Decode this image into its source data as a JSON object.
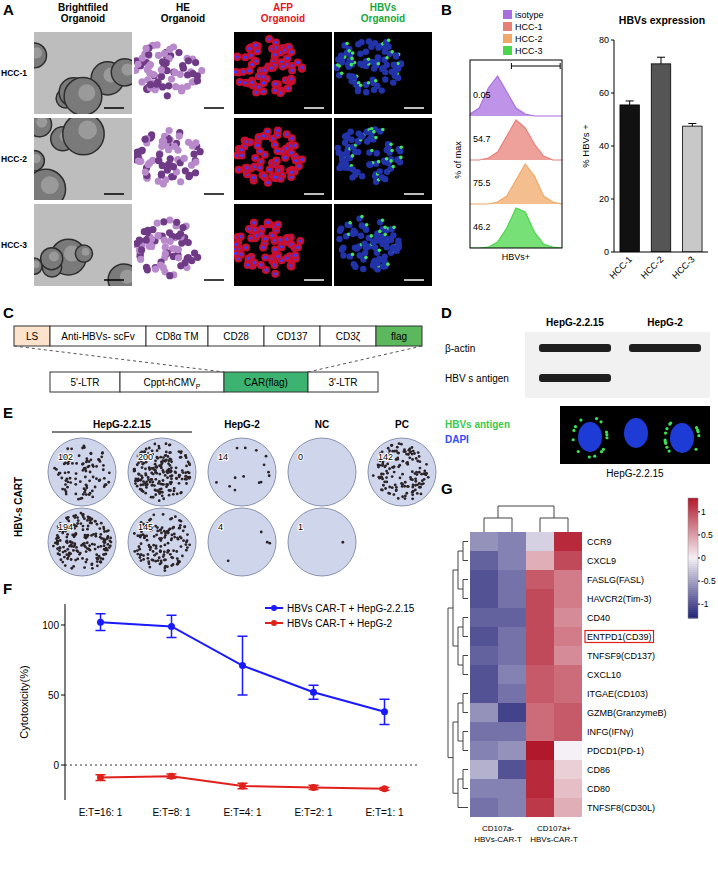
{
  "panels": {
    "A": {
      "label": "A",
      "columns": [
        {
          "label": [
            "Brightfiled",
            "Organoid"
          ],
          "color": "#000000"
        },
        {
          "label": [
            "HE",
            "Organoid"
          ],
          "color": "#000000"
        },
        {
          "label": [
            "AFP",
            "Organoid"
          ],
          "color": "#e8141b"
        },
        {
          "label": [
            "HBVs",
            "Organoid"
          ],
          "color": "#18a83a"
        }
      ],
      "rows": [
        "HCC-1",
        "HCC-2",
        "HCC-3"
      ]
    },
    "C": {
      "label": "C",
      "car": [
        {
          "text": "LS",
          "color": "#fde3cc"
        },
        {
          "text": "Anti-HBVs- scFv",
          "color": "#ffffff"
        },
        {
          "text": "CD8α TM",
          "color": "#ffffff"
        },
        {
          "text": "CD28",
          "color": "#ffffff"
        },
        {
          "text": "CD137",
          "color": "#ffffff"
        },
        {
          "text": "CD3ζ",
          "color": "#ffffff"
        },
        {
          "text": "flag",
          "color": "#5cb85c"
        }
      ],
      "vector": [
        {
          "text": "5'-LTR",
          "color": "#ffffff"
        },
        {
          "text": "Cppt-hCMV",
          "sub": "P",
          "color": "#ffffff"
        },
        {
          "text": "CAR(flag)",
          "color": "#3cb371"
        },
        {
          "text": "3'-LTR",
          "color": "#ffffff"
        }
      ]
    },
    "D": {
      "label": "D",
      "lanes": [
        "HepG-2.2.15",
        "HepG-2"
      ],
      "bands": [
        {
          "name": "β-actin",
          "present": [
            true,
            true
          ]
        },
        {
          "name": "HBV s antigen",
          "present": [
            true,
            false
          ]
        }
      ],
      "stain_legend": [
        {
          "text": "HBVs antigen",
          "color": "#39c94f"
        },
        {
          "text": "DAPI",
          "color": "#2f4bff"
        }
      ],
      "stain_label": "HepG-2.2.15"
    },
    "E": {
      "label": "E",
      "row_label": "HBV-s CART",
      "groups": [
        {
          "name": "HepG-2.2.15",
          "wells": [
            [
              102,
              194
            ],
            [
              200,
              145
            ]
          ]
        },
        {
          "name": "HepG-2",
          "wells": [
            [
              14,
              4
            ]
          ]
        },
        {
          "name": "NC",
          "wells": [
            [
              0,
              1
            ]
          ]
        },
        {
          "name": "PC",
          "wells": [
            [
              142
            ]
          ]
        }
      ]
    }
  },
  "chart_data": [
    {
      "type": "density",
      "panel_label": "B",
      "x_label": "HBVs+",
      "y_label": "% of max",
      "x": [
        0,
        1,
        2,
        3,
        4,
        5,
        6,
        7,
        8,
        9,
        10
      ],
      "xlim": [
        0,
        10
      ],
      "ylim": [
        0,
        100
      ],
      "tick_labels": false,
      "gate": [
        4.5,
        9.8
      ],
      "series": [
        {
          "name": "isotype",
          "color": "#a86fe0",
          "values": [
            5,
            20,
            70,
            100,
            60,
            20,
            5,
            0,
            0,
            0,
            0
          ],
          "gate_percent": 0.05
        },
        {
          "name": "HCC-1",
          "color": "#e8807a",
          "values": [
            0,
            0,
            5,
            20,
            60,
            100,
            80,
            40,
            10,
            0,
            0
          ],
          "gate_percent": 54.7
        },
        {
          "name": "HCC-2",
          "color": "#f0a868",
          "values": [
            0,
            0,
            0,
            5,
            20,
            60,
            100,
            70,
            20,
            5,
            0
          ],
          "gate_percent": 75.5
        },
        {
          "name": "HCC-3",
          "color": "#4ad64a",
          "values": [
            0,
            0,
            2,
            15,
            50,
            100,
            90,
            40,
            10,
            2,
            0
          ],
          "gate_percent": 46.2
        }
      ]
    },
    {
      "type": "bar",
      "title": "HBVs expression",
      "y_label": "% HBVs +",
      "categories": [
        "HCC-1",
        "HCC-2",
        "HCC-3"
      ],
      "values": [
        55.5,
        71,
        47.5
      ],
      "errors": [
        1.5,
        2.5,
        1
      ],
      "colors": [
        "#111111",
        "#555555",
        "#c8c8c8"
      ],
      "ylim": [
        0,
        80
      ],
      "yticks": [
        0,
        20,
        40,
        60,
        80
      ]
    },
    {
      "type": "line",
      "panel_label": "F",
      "y_label": "Cytotoxicity(%)",
      "categories": [
        "E:T=16: 1",
        "E:T=8: 1",
        "E:T=4: 1",
        "E:T=2: 1",
        "E:T=1: 1"
      ],
      "ylim": [
        -25,
        115
      ],
      "yticks": [
        0,
        50,
        100
      ],
      "marker": "circle",
      "legend": "top-right",
      "series": [
        {
          "name": "HBVs CAR-T + HepG-2.2.15",
          "color": "#1a1aff",
          "values": [
            102,
            99,
            71,
            52,
            38
          ],
          "errors": [
            6,
            8,
            21,
            5,
            9
          ]
        },
        {
          "name": "HBVs CAR-T + HepG-2",
          "color": "#e0201b",
          "values": [
            -9,
            -8,
            -15,
            -16,
            -17
          ],
          "errors": [
            2,
            1.5,
            2,
            1.5,
            1
          ]
        }
      ]
    },
    {
      "type": "heatmap",
      "panel_label": "G",
      "rows": [
        "CCR9",
        "CXCL9",
        "FASLG(FASL)",
        "HAVCR2(Tim-3)",
        "CD40",
        "ENTPD1(CD39)",
        "TNFSF9(CD137)",
        "CXCL10",
        "ITGAE(CD103)",
        "GZMB(GranzymeB)",
        "INFG(IFNγ)",
        "PDCD1(PD-1)",
        "CD86",
        "CD80",
        "TNFSF8(CD30L)"
      ],
      "column_groups": [
        [
          "CD107a-",
          "HBVs-CAR-T"
        ],
        [
          "CD107a+",
          "HBVs-CAR-T"
        ]
      ],
      "cells": [
        [
          -0.6,
          -0.7,
          -0.2,
          1.2
        ],
        [
          -0.9,
          -0.7,
          0.4,
          1.0
        ],
        [
          -1.0,
          -0.8,
          0.9,
          0.7
        ],
        [
          -1.0,
          -0.8,
          1.0,
          0.7
        ],
        [
          -0.9,
          -0.9,
          1.0,
          0.6
        ],
        [
          -1.0,
          -0.8,
          1.0,
          0.7
        ],
        [
          -0.9,
          -0.8,
          1.0,
          0.6
        ],
        [
          -1.0,
          -0.7,
          0.9,
          0.8
        ],
        [
          -1.0,
          -0.8,
          0.9,
          0.8
        ],
        [
          -0.6,
          -1.1,
          0.8,
          0.9
        ],
        [
          -0.8,
          -0.8,
          0.8,
          0.9
        ],
        [
          -0.7,
          -0.6,
          1.3,
          0.0
        ],
        [
          -0.4,
          -1.0,
          1.2,
          0.2
        ],
        [
          -0.7,
          -0.7,
          1.2,
          0.3
        ],
        [
          -0.8,
          -0.7,
          1.1,
          0.4
        ]
      ],
      "color_range": [
        -1.3,
        1.3
      ],
      "color_ticks": [
        1,
        0.5,
        0,
        -0.5,
        -1
      ],
      "highlight": "ENTPD1(CD39)"
    }
  ]
}
